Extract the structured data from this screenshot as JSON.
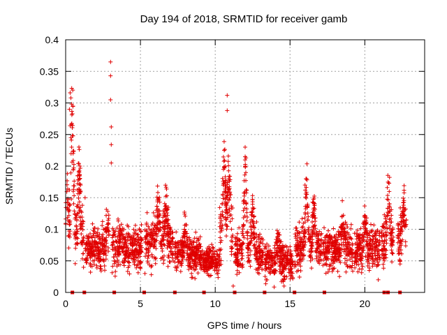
{
  "chart_data": {
    "type": "scatter",
    "title": "Day 194 of 2018, SRMTID for receiver gamb",
    "xlabel": "GPS time / hours",
    "ylabel": "SRMTID / TECUs",
    "xlim": [
      0,
      24
    ],
    "ylim": [
      0,
      0.4
    ],
    "grid": true,
    "x_ticks": [
      0,
      5,
      10,
      15,
      20
    ],
    "x_tick_labels": [
      "0",
      "5",
      "10",
      "15",
      "20"
    ],
    "y_ticks": [
      0,
      0.05,
      0.1,
      0.15,
      0.2,
      0.25,
      0.3,
      0.35,
      0.4
    ],
    "y_tick_labels": [
      "0",
      "0.05",
      "0.1",
      "0.15",
      "0.2",
      "0.25",
      "0.3",
      "0.35",
      "0.4"
    ],
    "marker": "+",
    "color": "#e00000",
    "series": [
      {
        "name": "SRMTID",
        "segments": [
          {
            "x_range": [
              0.0,
              1.2
            ],
            "base": 0.09,
            "spread": 0.04,
            "peaks": [
              [
                0.1,
                0.17
              ],
              [
                0.45,
                0.31
              ],
              [
                0.9,
                0.2
              ]
            ]
          },
          {
            "x_range": [
              1.3,
              2.9
            ],
            "base": 0.07,
            "spread": 0.03,
            "peaks": [
              [
                2.8,
                0.12
              ]
            ]
          },
          {
            "x_range": [
              3.1,
              5.1
            ],
            "base": 0.07,
            "spread": 0.03,
            "peaks": [
              [
                3.7,
                0.1
              ]
            ]
          },
          {
            "x_range": [
              5.3,
              7.2
            ],
            "base": 0.08,
            "spread": 0.035,
            "peaks": [
              [
                6.2,
                0.15
              ],
              [
                6.7,
                0.14
              ]
            ]
          },
          {
            "x_range": [
              7.3,
              9.2
            ],
            "base": 0.06,
            "spread": 0.025,
            "peaks": [
              [
                8.0,
                0.11
              ]
            ]
          },
          {
            "x_range": [
              9.2,
              10.3
            ],
            "base": 0.05,
            "spread": 0.02,
            "peaks": []
          },
          {
            "x_range": [
              10.3,
              11.2
            ],
            "base": 0.09,
            "spread": 0.04,
            "peaks": [
              [
                10.6,
                0.22
              ],
              [
                10.9,
                0.2
              ]
            ]
          },
          {
            "x_range": [
              11.3,
              13.2
            ],
            "base": 0.06,
            "spread": 0.03,
            "peaks": [
              [
                12.0,
                0.23
              ],
              [
                12.5,
                0.15
              ]
            ]
          },
          {
            "x_range": [
              13.3,
              15.2
            ],
            "base": 0.05,
            "spread": 0.025,
            "peaks": [
              [
                14.2,
                0.09
              ]
            ]
          },
          {
            "x_range": [
              15.3,
              17.1
            ],
            "base": 0.07,
            "spread": 0.03,
            "peaks": [
              [
                16.1,
                0.18
              ],
              [
                16.6,
                0.14
              ]
            ]
          },
          {
            "x_range": [
              17.2,
              19.2
            ],
            "base": 0.07,
            "spread": 0.03,
            "peaks": [
              [
                18.5,
                0.12
              ]
            ]
          },
          {
            "x_range": [
              19.3,
              21.0
            ],
            "base": 0.07,
            "spread": 0.03,
            "peaks": [
              [
                20.0,
                0.12
              ]
            ]
          },
          {
            "x_range": [
              21.1,
              21.9
            ],
            "base": 0.08,
            "spread": 0.035,
            "peaks": [
              [
                21.6,
                0.17
              ]
            ]
          },
          {
            "x_range": [
              22.2,
              22.8
            ],
            "base": 0.09,
            "spread": 0.035,
            "peaks": [
              [
                22.6,
                0.14
              ]
            ]
          }
        ],
        "outliers": [
          [
            0.25,
            0.29
          ],
          [
            0.3,
            0.316
          ],
          [
            0.35,
            0.308
          ],
          [
            0.4,
            0.298
          ],
          [
            0.45,
            0.283
          ],
          [
            0.3,
            0.264
          ],
          [
            0.35,
            0.245
          ],
          [
            0.4,
            0.23
          ],
          [
            0.5,
            0.22
          ],
          [
            1.0,
            0.17
          ],
          [
            0.9,
            0.19
          ],
          [
            1.3,
            0.15
          ],
          [
            3.0,
            0.365
          ],
          [
            3.0,
            0.343
          ],
          [
            3.0,
            0.305
          ],
          [
            3.05,
            0.262
          ],
          [
            3.05,
            0.234
          ],
          [
            3.05,
            0.205
          ],
          [
            10.6,
            0.225
          ],
          [
            10.8,
            0.312
          ],
          [
            10.8,
            0.288
          ],
          [
            12.0,
            0.23
          ],
          [
            12.0,
            0.215
          ],
          [
            12.0,
            0.2
          ],
          [
            16.1,
            0.18
          ],
          [
            16.0,
            0.17
          ],
          [
            21.6,
            0.173
          ],
          [
            5.3,
            0.03
          ],
          [
            11.2,
            0.01
          ],
          [
            14.6,
            0.01
          ],
          [
            13.4,
            0.02
          ],
          [
            20.9,
            0.02
          ]
        ]
      }
    ],
    "bottom_markers_x": [
      0.45,
      1.25,
      3.25,
      5.25,
      7.3,
      9.25,
      11.3,
      13.3,
      15.3,
      17.3,
      21.3,
      21.55,
      22.35
    ]
  }
}
